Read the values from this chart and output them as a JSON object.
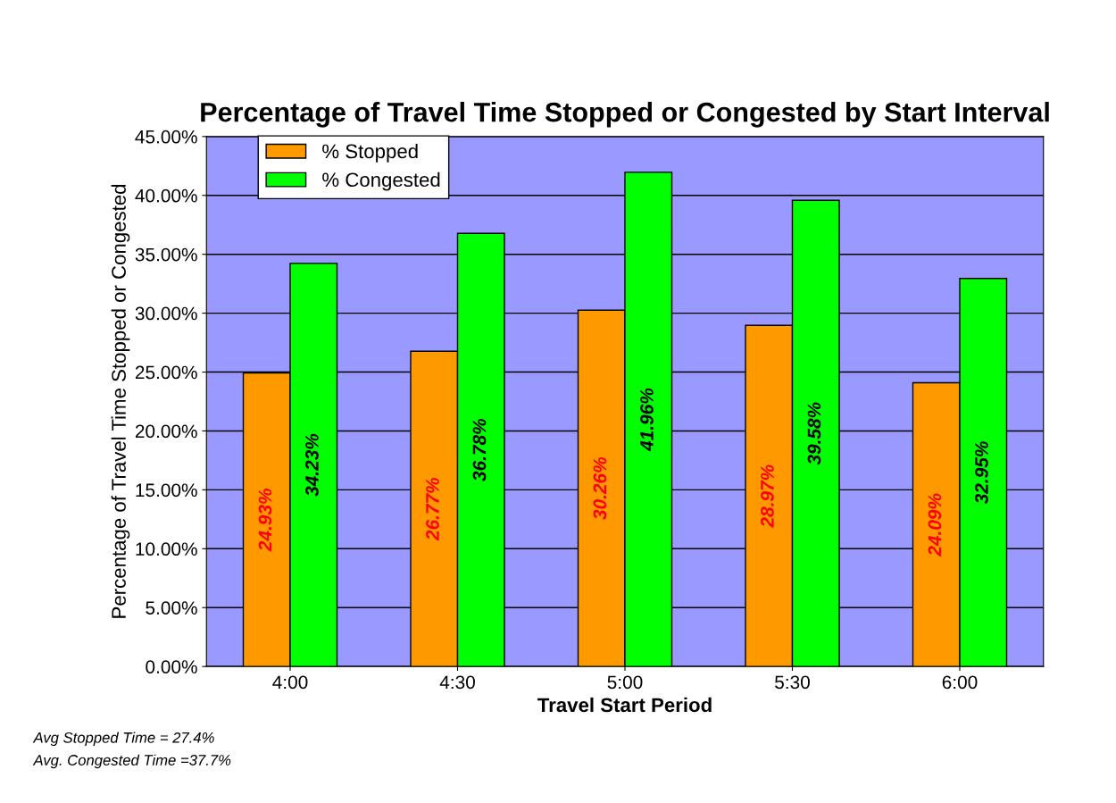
{
  "chart_data": {
    "type": "bar",
    "title": "Percentage of Travel Time Stopped or Congested by Start Interval",
    "xlabel": "Travel Start Period",
    "ylabel": "Percentage of Travel Time Stopped or Congested",
    "categories": [
      "4:00",
      "4:30",
      "5:00",
      "5:30",
      "6:00"
    ],
    "series": [
      {
        "name": "% Stopped",
        "color": "#ff9900",
        "values": [
          24.93,
          26.77,
          30.26,
          28.97,
          24.09
        ],
        "value_labels": [
          "24.93%",
          "26.77%",
          "30.26%",
          "28.97%",
          "24.09%"
        ]
      },
      {
        "name": "% Congested",
        "color": "#00ff00",
        "values": [
          34.23,
          36.78,
          41.96,
          39.58,
          32.95
        ],
        "value_labels": [
          "34.23%",
          "36.78%",
          "41.96%",
          "39.58%",
          "32.95%"
        ]
      }
    ],
    "ylim": [
      0,
      45
    ],
    "yticks": [
      {
        "value": 0,
        "label": "0.00%"
      },
      {
        "value": 5,
        "label": "5.00%"
      },
      {
        "value": 10,
        "label": "10.00%"
      },
      {
        "value": 15,
        "label": "15.00%"
      },
      {
        "value": 20,
        "label": "20.00%"
      },
      {
        "value": 25,
        "label": "25.00%"
      },
      {
        "value": 30,
        "label": "30.00%"
      },
      {
        "value": 35,
        "label": "35.00%"
      },
      {
        "value": 40,
        "label": "40.00%"
      },
      {
        "value": 45,
        "label": "45.00%"
      }
    ],
    "grid": "y",
    "legend": "top left",
    "annotations": [
      "Avg Stopped Time = 27.4%",
      "Avg. Congested Time =37.7%"
    ]
  }
}
